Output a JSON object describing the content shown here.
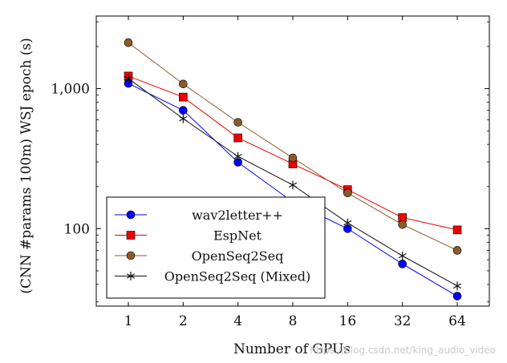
{
  "chart_data": {
    "type": "line",
    "title": "",
    "xlabel": "Number of GPUs",
    "ylabel": "(CNN #params 100m) WSJ epoch (s)",
    "x": [
      1,
      2,
      4,
      8,
      16,
      32,
      64
    ],
    "xticklabels": [
      "1",
      "2",
      "4",
      "8",
      "16",
      "32",
      "64"
    ],
    "xscale": "log2",
    "yscale": "log10",
    "ylim": [
      28,
      3300
    ],
    "yticks": [
      100,
      1000
    ],
    "yticklabels": [
      "100",
      "1,000"
    ],
    "grid": false,
    "legend_position": "bottom-left",
    "series": [
      {
        "name": "wav2letter++",
        "color": "#0000ff",
        "marker": "circle",
        "values": [
          1090,
          700,
          298,
          155,
          100,
          56,
          33
        ]
      },
      {
        "name": "EspNet",
        "color": "#ee0000",
        "marker": "square",
        "values": [
          1230,
          870,
          445,
          290,
          190,
          120,
          98
        ]
      },
      {
        "name": "OpenSeq2Seq",
        "color": "#8b5a2b",
        "marker": "circle",
        "values": [
          2130,
          1080,
          575,
          320,
          180,
          107,
          70
        ]
      },
      {
        "name": "OpenSeq2Seq (Mixed)",
        "color": "#111111",
        "marker": "star",
        "values": [
          1180,
          610,
          328,
          205,
          110,
          64,
          39
        ]
      }
    ]
  },
  "watermark": "https://blog.csdn.net/king_audio_video"
}
